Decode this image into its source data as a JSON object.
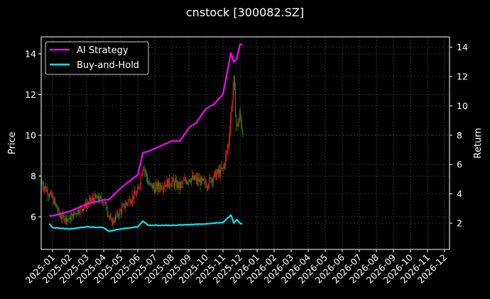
{
  "chart_data": {
    "type": "line",
    "title": "cnstock [300082.SZ]",
    "xlabel": "",
    "ylabel": "Price",
    "ylabel_right": "Return",
    "ylim": [
      4.55,
      14.85
    ],
    "ylim_right": [
      1.2,
      14.7
    ],
    "grid": true,
    "legend_position": "upper left",
    "x_ticks": [
      "2025-01",
      "2025-02",
      "2025-03",
      "2025-04",
      "2025-05",
      "2025-06",
      "2025-07",
      "2025-08",
      "2025-09",
      "2025-10",
      "2025-11",
      "2025-12",
      "2026-01",
      "2026-02",
      "2026-03",
      "2026-04",
      "2026-05",
      "2026-06",
      "2026-07",
      "2026-08",
      "2026-09",
      "2026-10",
      "2026-11",
      "2026-12"
    ],
    "y_ticks_left": [
      6,
      8,
      10,
      12,
      14
    ],
    "y_ticks_right": [
      2,
      4,
      6,
      8,
      10,
      12,
      14
    ],
    "candlestick_price_approx": {
      "x": [
        "2024-12",
        "2025-01",
        "2025-01-15",
        "2025-02",
        "2025-02-15",
        "2025-03",
        "2025-03-15",
        "2025-04",
        "2025-04-15",
        "2025-05",
        "2025-05-15",
        "2025-06",
        "2025-06-10",
        "2025-06-20",
        "2025-07",
        "2025-07-15",
        "2025-08",
        "2025-08-15",
        "2025-09",
        "2025-09-15",
        "2025-10",
        "2025-10-15",
        "2025-11",
        "2025-11-10",
        "2025-11-20",
        "2025-11-25",
        "2025-12",
        "2025-12-05"
      ],
      "close": [
        8.1,
        6.9,
        6.0,
        5.9,
        6.3,
        6.6,
        6.9,
        6.8,
        5.7,
        6.3,
        6.8,
        7.2,
        8.6,
        7.6,
        7.4,
        7.6,
        7.7,
        7.5,
        7.9,
        7.8,
        7.6,
        8.0,
        8.3,
        9.5,
        12.6,
        10.3,
        11.0,
        10.3
      ]
    },
    "series": [
      {
        "name": "AI Strategy",
        "color": "#ff00ff",
        "axis": "right",
        "x": [
          "2024-12-25",
          "2025-01",
          "2025-02",
          "2025-03",
          "2025-04",
          "2025-04-10",
          "2025-05",
          "2025-06",
          "2025-06-10",
          "2025-06-20",
          "2025-07",
          "2025-08",
          "2025-08-15",
          "2025-09",
          "2025-09-15",
          "2025-10",
          "2025-10-15",
          "2025-11",
          "2025-11-15",
          "2025-11-20",
          "2025-11-25",
          "2025-12",
          "2025-12-05"
        ],
        "values": [
          2.5,
          2.5,
          2.8,
          3.3,
          3.6,
          3.6,
          4.4,
          5.3,
          6.8,
          6.9,
          7.1,
          7.6,
          7.6,
          8.5,
          8.9,
          9.8,
          10.1,
          10.8,
          13.6,
          13.0,
          13.2,
          14.2,
          14.2
        ]
      },
      {
        "name": "Buy-and-Hold",
        "color": "#00e5ee",
        "axis": "right",
        "x": [
          "2024-12-25",
          "2025-01",
          "2025-02",
          "2025-03",
          "2025-04",
          "2025-04-10",
          "2025-05",
          "2025-06",
          "2025-06-10",
          "2025-06-20",
          "2025-07",
          "2025-08",
          "2025-09",
          "2025-10",
          "2025-11",
          "2025-11-15",
          "2025-11-20",
          "2025-11-25",
          "2025-12",
          "2025-12-05"
        ],
        "values": [
          1.95,
          1.7,
          1.6,
          1.75,
          1.7,
          1.45,
          1.6,
          1.75,
          2.15,
          1.85,
          1.85,
          1.85,
          1.9,
          1.95,
          2.05,
          2.55,
          2.0,
          2.25,
          2.0,
          1.95
        ]
      }
    ]
  },
  "legend": {
    "items": [
      {
        "label": "AI Strategy",
        "color": "#ff00ff"
      },
      {
        "label": "Buy-and-Hold",
        "color": "#00e5ee"
      }
    ]
  },
  "colors": {
    "background": "#000000",
    "grid": "#555555",
    "candle_up": "#ff1a1a",
    "candle_down": "#228b22",
    "axis": "#ffffff"
  }
}
